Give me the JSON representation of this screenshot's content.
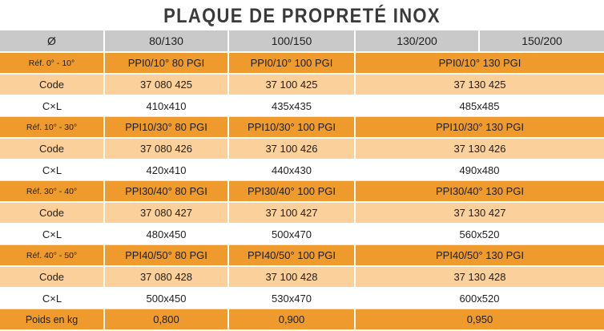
{
  "title": "PLAQUE DE PROPRETÉ INOX",
  "headers": [
    "Ø",
    "80/130",
    "100/150",
    "130/200",
    "150/200"
  ],
  "groups": [
    {
      "ref_label": "Réf. 0° - 10°",
      "refs": [
        "PPI0/10° 80 PGI",
        "PPI0/10° 100 PGI",
        "PPI0/10° 130 PGI"
      ],
      "code_label": "Code",
      "codes": [
        "37 080 425",
        "37 100 425",
        "37 130 425"
      ],
      "dim_label": "C×L",
      "dims": [
        "410x410",
        "435x435",
        "485x485"
      ]
    },
    {
      "ref_label": "Réf. 10° - 30°",
      "refs": [
        "PPI10/30° 80 PGI",
        "PPI10/30° 100 PGI",
        "PPI10/30° 130 PGI"
      ],
      "code_label": "Code",
      "codes": [
        "37 080 426",
        "37 100 426",
        "37 130 426"
      ],
      "dim_label": "C×L",
      "dims": [
        "420x410",
        "440x430",
        "490x480"
      ]
    },
    {
      "ref_label": "Réf. 30° - 40°",
      "refs": [
        "PPI30/40° 80 PGI",
        "PPI30/40° 100 PGI",
        "PPI30/40° 130 PGI"
      ],
      "code_label": "Code",
      "codes": [
        "37 080 427",
        "37 100 427",
        "37 130 427"
      ],
      "dim_label": "C×L",
      "dims": [
        "480x450",
        "500x470",
        "560x520"
      ]
    },
    {
      "ref_label": "Réf. 40° - 50°",
      "refs": [
        "PPI40/50° 80 PGI",
        "PPI40/50° 100 PGI",
        "PPI40/50° 130 PGI"
      ],
      "code_label": "Code",
      "codes": [
        "37 080 428",
        "37 100 428",
        "37 130 428"
      ],
      "dim_label": "C×L",
      "dims": [
        "500x450",
        "530x470",
        "600x520"
      ]
    }
  ],
  "weight": {
    "label": "Poids en kg",
    "values": [
      "0,800",
      "0,900",
      "0,950"
    ]
  },
  "colors": {
    "orange": "#ee9a2c",
    "light_orange": "#fbd09a",
    "grey_header": "#c9c9c9",
    "title_text": "#3a3a3a"
  }
}
